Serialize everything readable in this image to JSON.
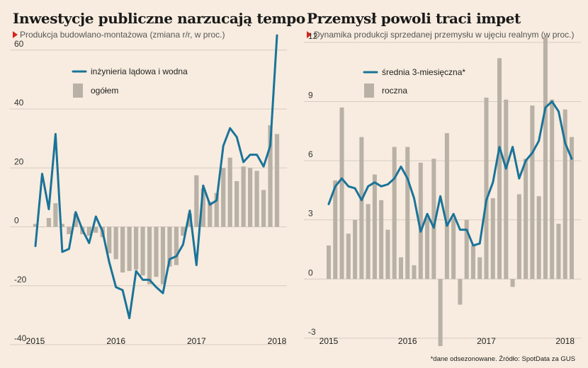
{
  "colors": {
    "background": "#f7ecdf",
    "line": "#1a7399",
    "bar": "#b9b1a6",
    "grid": "#d6ccbf",
    "marker": "#d9241c"
  },
  "left": {
    "title": "Inwestycje publiczne narzucają tempo",
    "subtitle": "Produkcja budowlano-montażowa (zmiana r/r, w proc.)"
  },
  "right": {
    "title": "Przemysł powoli traci impet",
    "subtitle": "Dynamika produkcji sprzedanej przemysłu w ujęciu realnym (w proc.)"
  },
  "footnote": "*dane odsezonowane. Źródło: SpotData za GUS",
  "chart_data": [
    {
      "type": "bar+line",
      "title": "Inwestycje publiczne narzucają tempo",
      "subtitle": "Produkcja budowlano-montażowa (zmiana r/r, w proc.)",
      "ylim": [
        -40,
        65
      ],
      "yticks": [
        60,
        40,
        20,
        0,
        -20,
        -40
      ],
      "xticks": [
        {
          "label": "2015",
          "index": 0
        },
        {
          "label": "2016",
          "index": 12
        },
        {
          "label": "2017",
          "index": 24
        },
        {
          "label": "2018",
          "index": 36
        }
      ],
      "grid": true,
      "legend_position": "top-left",
      "series": [
        {
          "name": "inżynieria lądowa i wodna",
          "kind": "line",
          "values": [
            -6.5,
            18,
            6,
            31.5,
            -8.5,
            -7.5,
            5,
            -1,
            -5.5,
            3.5,
            -1.5,
            -12,
            -20.5,
            -21.5,
            -31,
            -15,
            -18,
            -18,
            -20.5,
            -22.5,
            -11,
            -10,
            -6,
            5.5,
            -13,
            14,
            7.5,
            9,
            27.5,
            33.5,
            30.5,
            22,
            24.5,
            24.5,
            20.5,
            27.5,
            65
          ]
        },
        {
          "name": "ogółem",
          "kind": "bar",
          "values": [
            1,
            0,
            3,
            8,
            1,
            -2.5,
            4.5,
            -2.5,
            -3,
            -2,
            -3.5,
            -9,
            -11,
            -15.5,
            -15,
            -14.5,
            -16.5,
            -19.5,
            -17,
            -19.5,
            -13.5,
            -13,
            -3,
            4.5,
            17.5,
            13,
            8.5,
            11.5,
            20,
            23.5,
            15.5,
            20.5,
            20,
            19,
            12.5,
            34.5,
            31.5
          ]
        }
      ]
    },
    {
      "type": "bar+line",
      "title": "Przemysł powoli traci impet",
      "subtitle": "Dynamika produkcji sprzedanej przemysłu w ujęciu realnym (w proc.)",
      "ylim": [
        -3.4,
        12.5
      ],
      "yticks": [
        12,
        9,
        6,
        3,
        0,
        -3
      ],
      "xticks": [
        {
          "label": "2015",
          "index": 0
        },
        {
          "label": "2016",
          "index": 12
        },
        {
          "label": "2017",
          "index": 24
        },
        {
          "label": "2018",
          "index": 36
        }
      ],
      "grid": true,
      "legend_position": "top-left",
      "series": [
        {
          "name": "średnia 3-miesięczna*",
          "kind": "line",
          "values": [
            3.8,
            4.7,
            5.1,
            4.7,
            4.6,
            4.0,
            4.7,
            4.9,
            4.7,
            4.8,
            5.1,
            5.7,
            5.1,
            4.1,
            2.4,
            3.3,
            2.6,
            4.2,
            2.7,
            3.3,
            2.5,
            2.5,
            1.7,
            1.8,
            4.0,
            4.9,
            6.7,
            5.6,
            6.7,
            5.1,
            6.0,
            6.4,
            7.0,
            8.7,
            9.0,
            8.5,
            6.9,
            6.1
          ]
        },
        {
          "name": "roczna",
          "kind": "bar",
          "values": [
            1.7,
            5.0,
            8.7,
            2.3,
            3.0,
            7.2,
            3.8,
            5.3,
            4.0,
            2.5,
            6.7,
            1.1,
            6.7,
            0.7,
            5.9,
            3.1,
            6.1,
            -3.4,
            7.4,
            3.1,
            -1.3,
            3.0,
            1.7,
            1.1,
            9.2,
            4.1,
            11.2,
            9.1,
            -0.4,
            4.3,
            6.1,
            8.8,
            4.2,
            12.3,
            9.1,
            2.8,
            8.6,
            7.2
          ]
        }
      ]
    }
  ]
}
